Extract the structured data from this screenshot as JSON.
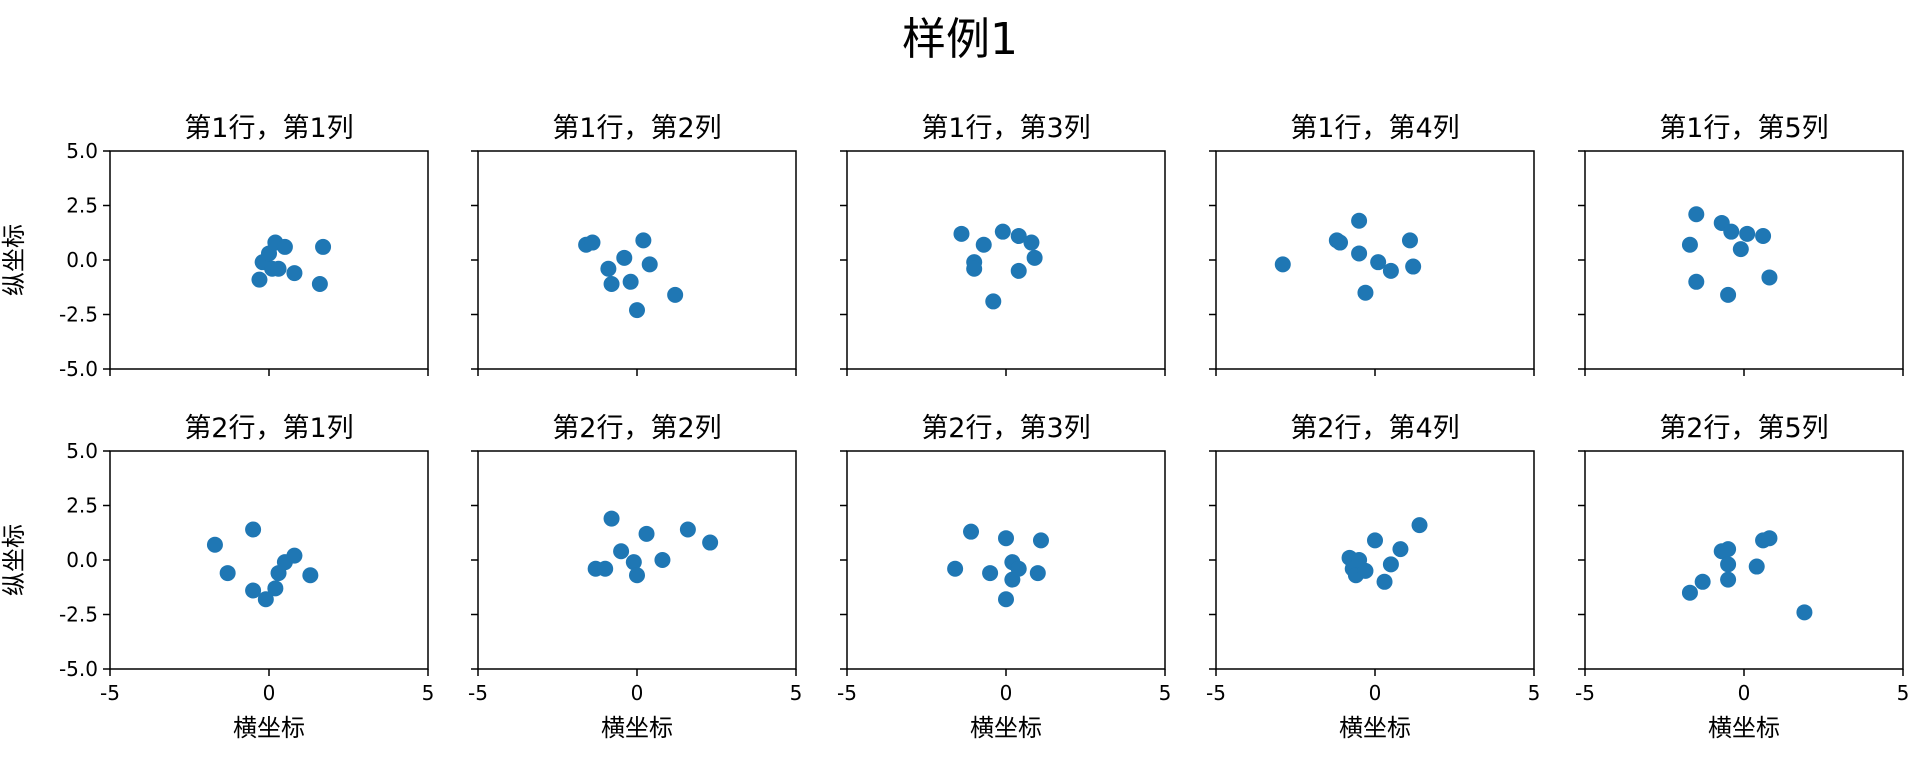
{
  "suptitle": "样例1",
  "xlabel": "横坐标",
  "ylabel": "纵坐标",
  "xlim": [
    -5,
    5
  ],
  "ylim": [
    -5,
    5
  ],
  "xticks": [
    "-5",
    "0",
    "5"
  ],
  "yticks": [
    "5.0",
    "2.5",
    "0.0",
    "-2.5",
    "-5.0"
  ],
  "marker_color": "#1f77b4",
  "chart_data": [
    {
      "type": "scatter",
      "title": "第1行，第1列",
      "points": [
        [
          -0.3,
          -0.9
        ],
        [
          -0.2,
          -0.1
        ],
        [
          0.0,
          0.3
        ],
        [
          0.1,
          -0.4
        ],
        [
          0.2,
          0.8
        ],
        [
          0.3,
          -0.4
        ],
        [
          0.5,
          0.6
        ],
        [
          0.8,
          -0.6
        ],
        [
          1.6,
          -1.1
        ],
        [
          1.7,
          0.6
        ]
      ]
    },
    {
      "type": "scatter",
      "title": "第1行，第2列",
      "points": [
        [
          -1.6,
          0.7
        ],
        [
          -1.4,
          0.8
        ],
        [
          -0.9,
          -0.4
        ],
        [
          -0.8,
          -1.1
        ],
        [
          -0.4,
          0.1
        ],
        [
          -0.2,
          -1.0
        ],
        [
          0.0,
          -2.3
        ],
        [
          0.2,
          0.9
        ],
        [
          0.4,
          -0.2
        ],
        [
          1.2,
          -1.6
        ]
      ]
    },
    {
      "type": "scatter",
      "title": "第1行，第3列",
      "points": [
        [
          -1.4,
          1.2
        ],
        [
          -1.0,
          -0.1
        ],
        [
          -1.0,
          -0.4
        ],
        [
          -0.7,
          0.7
        ],
        [
          -0.4,
          -1.9
        ],
        [
          -0.1,
          1.3
        ],
        [
          0.4,
          -0.5
        ],
        [
          0.4,
          1.1
        ],
        [
          0.8,
          0.8
        ],
        [
          0.9,
          0.1
        ]
      ]
    },
    {
      "type": "scatter",
      "title": "第1行，第4列",
      "points": [
        [
          -2.9,
          -0.2
        ],
        [
          -1.2,
          0.9
        ],
        [
          -1.1,
          0.8
        ],
        [
          -0.5,
          1.8
        ],
        [
          -0.5,
          0.3
        ],
        [
          -0.3,
          -1.5
        ],
        [
          0.1,
          -0.1
        ],
        [
          0.5,
          -0.5
        ],
        [
          1.1,
          0.9
        ],
        [
          1.2,
          -0.3
        ]
      ]
    },
    {
      "type": "scatter",
      "title": "第1行，第5列",
      "points": [
        [
          -1.7,
          0.7
        ],
        [
          -1.5,
          2.1
        ],
        [
          -1.5,
          -1.0
        ],
        [
          -0.7,
          1.7
        ],
        [
          -0.5,
          -1.6
        ],
        [
          -0.4,
          1.3
        ],
        [
          -0.1,
          0.5
        ],
        [
          0.1,
          1.2
        ],
        [
          0.6,
          1.1
        ],
        [
          0.8,
          -0.8
        ]
      ]
    },
    {
      "type": "scatter",
      "title": "第2行，第1列",
      "points": [
        [
          -1.7,
          0.7
        ],
        [
          -1.3,
          -0.6
        ],
        [
          -0.5,
          1.4
        ],
        [
          -0.5,
          -1.4
        ],
        [
          -0.1,
          -1.8
        ],
        [
          0.2,
          -1.3
        ],
        [
          0.3,
          -0.6
        ],
        [
          0.5,
          -0.1
        ],
        [
          0.8,
          0.2
        ],
        [
          1.3,
          -0.7
        ]
      ]
    },
    {
      "type": "scatter",
      "title": "第2行，第2列",
      "points": [
        [
          -1.3,
          -0.4
        ],
        [
          -1.0,
          -0.4
        ],
        [
          -0.8,
          1.9
        ],
        [
          -0.5,
          0.4
        ],
        [
          -0.1,
          -0.1
        ],
        [
          0.0,
          -0.7
        ],
        [
          0.3,
          1.2
        ],
        [
          0.8,
          0.0
        ],
        [
          1.6,
          1.4
        ],
        [
          2.3,
          0.8
        ]
      ]
    },
    {
      "type": "scatter",
      "title": "第2行，第3列",
      "points": [
        [
          -1.6,
          -0.4
        ],
        [
          -1.1,
          1.3
        ],
        [
          -0.5,
          -0.6
        ],
        [
          0.0,
          1.0
        ],
        [
          0.0,
          -1.8
        ],
        [
          0.2,
          -0.1
        ],
        [
          0.2,
          -0.9
        ],
        [
          0.4,
          -0.4
        ],
        [
          1.0,
          -0.6
        ],
        [
          1.1,
          0.9
        ]
      ]
    },
    {
      "type": "scatter",
      "title": "第2行，第4列",
      "points": [
        [
          -0.8,
          0.1
        ],
        [
          -0.7,
          -0.4
        ],
        [
          -0.6,
          -0.7
        ],
        [
          -0.5,
          0.0
        ],
        [
          -0.3,
          -0.5
        ],
        [
          0.0,
          0.9
        ],
        [
          0.3,
          -1.0
        ],
        [
          0.5,
          -0.2
        ],
        [
          0.8,
          0.5
        ],
        [
          1.4,
          1.6
        ]
      ]
    },
    {
      "type": "scatter",
      "title": "第2行，第5列",
      "points": [
        [
          -1.7,
          -1.5
        ],
        [
          -1.3,
          -1.0
        ],
        [
          -0.7,
          0.4
        ],
        [
          -0.5,
          0.5
        ],
        [
          -0.5,
          -0.2
        ],
        [
          -0.5,
          -0.9
        ],
        [
          0.4,
          -0.3
        ],
        [
          0.6,
          0.9
        ],
        [
          0.8,
          1.0
        ],
        [
          1.9,
          -2.4
        ]
      ]
    }
  ]
}
